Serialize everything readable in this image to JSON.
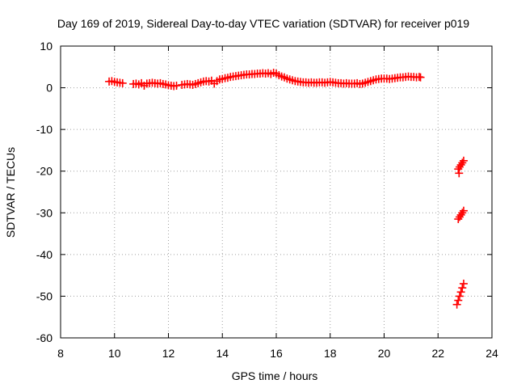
{
  "chart_data": {
    "type": "scatter",
    "title": "Day 169 of 2019, Sidereal Day-to-day VTEC variation (SDTVAR) for receiver p019",
    "xlabel": "GPS time / hours",
    "ylabel": "SDTVAR / TECUs",
    "xlim": [
      8,
      24
    ],
    "ylim": [
      -60,
      10
    ],
    "xticks": [
      8,
      10,
      12,
      14,
      16,
      18,
      20,
      22,
      24
    ],
    "yticks": [
      10,
      0,
      -10,
      -20,
      -30,
      -40,
      -50,
      -60
    ],
    "xtick_labels": [
      "8",
      "10",
      "12",
      "14",
      "16",
      "18",
      "20",
      "22",
      "24"
    ],
    "ytick_labels": [
      "10",
      "0",
      "-10",
      "-20",
      "-30",
      "-40",
      "-50",
      "-60"
    ],
    "grid": true,
    "marker": "+",
    "color": "#ff0000",
    "series": [
      {
        "points": [
          [
            9.8,
            1.5
          ],
          [
            9.9,
            1.6
          ],
          [
            10.0,
            1.4
          ],
          [
            10.1,
            1.3
          ],
          [
            10.2,
            1.2
          ],
          [
            10.3,
            1.1
          ],
          [
            10.7,
            0.9
          ],
          [
            10.8,
            1.0
          ],
          [
            10.9,
            0.8
          ],
          [
            11.0,
            1.1
          ],
          [
            11.1,
            0.5
          ],
          [
            11.2,
            1.0
          ],
          [
            11.3,
            1.1
          ],
          [
            11.4,
            1.2
          ],
          [
            11.5,
            1.1
          ],
          [
            11.6,
            1.0
          ],
          [
            11.7,
            1.1
          ],
          [
            11.8,
            0.9
          ],
          [
            11.9,
            0.8
          ],
          [
            12.0,
            0.6
          ],
          [
            12.1,
            0.5
          ],
          [
            12.2,
            0.4
          ],
          [
            12.3,
            0.5
          ],
          [
            12.5,
            0.7
          ],
          [
            12.6,
            0.8
          ],
          [
            12.7,
            0.9
          ],
          [
            12.8,
            0.8
          ],
          [
            12.9,
            0.7
          ],
          [
            13.0,
            0.9
          ],
          [
            13.1,
            1.1
          ],
          [
            13.2,
            1.3
          ],
          [
            13.3,
            1.5
          ],
          [
            13.4,
            1.6
          ],
          [
            13.5,
            1.5
          ],
          [
            13.6,
            1.7
          ],
          [
            13.7,
            1.0
          ],
          [
            13.8,
            1.6
          ],
          [
            13.9,
            2.0
          ],
          [
            14.0,
            2.1
          ],
          [
            14.1,
            2.3
          ],
          [
            14.2,
            2.4
          ],
          [
            14.3,
            2.6
          ],
          [
            14.4,
            2.7
          ],
          [
            14.5,
            2.8
          ],
          [
            14.6,
            2.9
          ],
          [
            14.7,
            3.0
          ],
          [
            14.8,
            3.1
          ],
          [
            14.9,
            3.2
          ],
          [
            15.0,
            3.2
          ],
          [
            15.1,
            3.3
          ],
          [
            15.2,
            3.3
          ],
          [
            15.3,
            3.4
          ],
          [
            15.4,
            3.4
          ],
          [
            15.5,
            3.5
          ],
          [
            15.6,
            3.4
          ],
          [
            15.7,
            3.5
          ],
          [
            15.8,
            3.3
          ],
          [
            15.9,
            3.6
          ],
          [
            16.0,
            3.4
          ],
          [
            16.1,
            3.0
          ],
          [
            16.2,
            2.7
          ],
          [
            16.3,
            2.5
          ],
          [
            16.4,
            2.2
          ],
          [
            16.5,
            2.0
          ],
          [
            16.6,
            1.8
          ],
          [
            16.7,
            1.6
          ],
          [
            16.8,
            1.5
          ],
          [
            16.9,
            1.4
          ],
          [
            17.0,
            1.3
          ],
          [
            17.1,
            1.3
          ],
          [
            17.2,
            1.2
          ],
          [
            17.3,
            1.3
          ],
          [
            17.4,
            1.2
          ],
          [
            17.5,
            1.2
          ],
          [
            17.6,
            1.3
          ],
          [
            17.7,
            1.3
          ],
          [
            17.8,
            1.2
          ],
          [
            17.9,
            1.3
          ],
          [
            18.0,
            1.4
          ],
          [
            18.1,
            1.3
          ],
          [
            18.2,
            1.2
          ],
          [
            18.3,
            1.1
          ],
          [
            18.4,
            1.1
          ],
          [
            18.5,
            1.0
          ],
          [
            18.6,
            1.1
          ],
          [
            18.7,
            1.0
          ],
          [
            18.8,
            1.0
          ],
          [
            18.9,
            1.0
          ],
          [
            19.0,
            1.1
          ],
          [
            19.1,
            0.9
          ],
          [
            19.2,
            1.0
          ],
          [
            19.3,
            1.2
          ],
          [
            19.4,
            1.4
          ],
          [
            19.5,
            1.6
          ],
          [
            19.6,
            1.8
          ],
          [
            19.7,
            2.0
          ],
          [
            19.8,
            2.1
          ],
          [
            19.9,
            2.2
          ],
          [
            20.0,
            2.2
          ],
          [
            20.1,
            2.2
          ],
          [
            20.2,
            2.1
          ],
          [
            20.3,
            2.2
          ],
          [
            20.4,
            2.3
          ],
          [
            20.5,
            2.4
          ],
          [
            20.6,
            2.5
          ],
          [
            20.7,
            2.5
          ],
          [
            20.8,
            2.6
          ],
          [
            20.9,
            2.7
          ],
          [
            21.0,
            2.6
          ],
          [
            21.1,
            2.6
          ],
          [
            21.2,
            2.5
          ],
          [
            21.3,
            2.6
          ],
          [
            21.35,
            2.5
          ],
          [
            22.75,
            -19.5
          ],
          [
            22.8,
            -19.0
          ],
          [
            22.85,
            -18.5
          ],
          [
            22.9,
            -18.0
          ],
          [
            22.95,
            -17.5
          ],
          [
            22.78,
            -20.5
          ],
          [
            22.75,
            -31.5
          ],
          [
            22.8,
            -31.0
          ],
          [
            22.85,
            -30.5
          ],
          [
            22.9,
            -30.0
          ],
          [
            22.95,
            -29.5
          ],
          [
            22.7,
            -52.0
          ],
          [
            22.75,
            -51.0
          ],
          [
            22.8,
            -50.0
          ],
          [
            22.85,
            -49.0
          ],
          [
            22.9,
            -48.0
          ],
          [
            22.95,
            -47.0
          ]
        ]
      }
    ]
  }
}
